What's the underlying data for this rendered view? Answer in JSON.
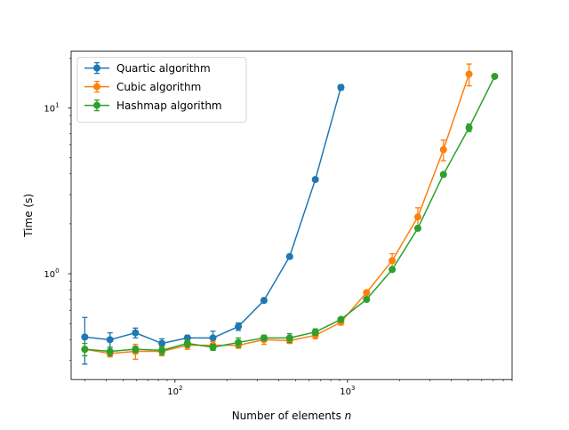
{
  "chart_data": {
    "type": "line",
    "title": "",
    "xlabel": "Number of elements",
    "xlabel_var": "n",
    "ylabel": "Time (s)",
    "xscale": "log",
    "yscale": "log",
    "xlim": [
      25,
      9000
    ],
    "ylim": [
      0.23,
      22
    ],
    "x_ticks": [
      {
        "value": 100,
        "base": "10",
        "exp": "2"
      },
      {
        "value": 1000,
        "base": "10",
        "exp": "3"
      }
    ],
    "y_ticks": [
      {
        "value": 1,
        "base": "10",
        "exp": "0"
      },
      {
        "value": 10,
        "base": "10",
        "exp": "1"
      }
    ],
    "grid": false,
    "legend_position": "top-left",
    "series": [
      {
        "name": "Quartic algorithm",
        "color": "#1f77b4",
        "x": [
          30,
          42,
          59,
          84,
          118,
          166,
          233,
          328,
          462,
          651,
          916
        ],
        "y": [
          0.415,
          0.4,
          0.44,
          0.38,
          0.41,
          0.41,
          0.48,
          0.69,
          1.27,
          3.7,
          13.3
        ],
        "err": [
          0.13,
          0.04,
          0.03,
          0.025,
          0.015,
          0.04,
          0.025,
          0.02,
          0.04,
          0.1,
          0.5
        ]
      },
      {
        "name": "Cubic algorithm",
        "color": "#ff7f0e",
        "x": [
          30,
          42,
          59,
          84,
          118,
          166,
          233,
          328,
          462,
          651,
          916,
          1290,
          1816,
          2557,
          3599,
          5067
        ],
        "y": [
          0.35,
          0.33,
          0.34,
          0.34,
          0.37,
          0.37,
          0.37,
          0.4,
          0.395,
          0.425,
          0.51,
          0.77,
          1.2,
          2.2,
          5.6,
          16.0
        ],
        "err": [
          0.01,
          0.015,
          0.035,
          0.02,
          0.02,
          0.02,
          0.015,
          0.025,
          0.015,
          0.02,
          0.02,
          0.02,
          0.12,
          0.3,
          0.8,
          2.4
        ]
      },
      {
        "name": "Hashmap algorithm",
        "color": "#2ca02c",
        "x": [
          30,
          42,
          59,
          84,
          118,
          166,
          233,
          328,
          462,
          651,
          916,
          1290,
          1816,
          2557,
          3599,
          5067,
          7133
        ],
        "y": [
          0.35,
          0.34,
          0.35,
          0.345,
          0.38,
          0.36,
          0.385,
          0.41,
          0.41,
          0.445,
          0.53,
          0.7,
          1.06,
          1.88,
          3.97,
          7.6,
          15.5
        ],
        "err": [
          0.03,
          0.02,
          0.015,
          0.02,
          0.02,
          0.015,
          0.025,
          0.015,
          0.025,
          0.02,
          0.015,
          0.02,
          0.03,
          0.05,
          0.1,
          0.4,
          0.3
        ]
      }
    ]
  }
}
